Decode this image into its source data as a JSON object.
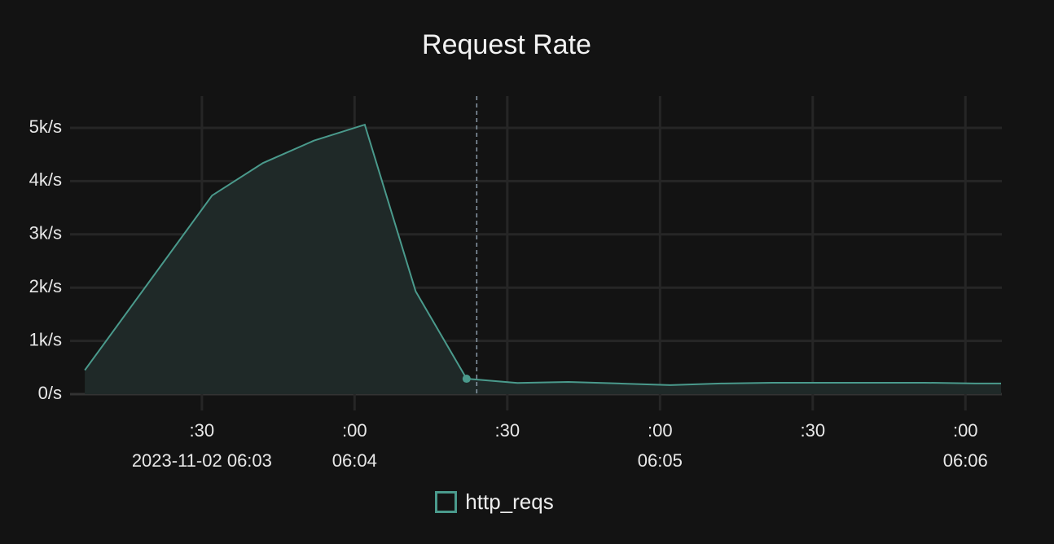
{
  "chart_data": {
    "type": "area",
    "title": "Request Rate",
    "xlabel": "",
    "ylabel": "",
    "x_type": "time",
    "xlim": [
      "2023-11-02 06:03:07.3",
      "2023-11-02 06:06:07"
    ],
    "ylim": [
      0,
      5000
    ],
    "y_ticks": [
      {
        "value": 0,
        "label": "0/s"
      },
      {
        "value": 1000,
        "label": "1k/s"
      },
      {
        "value": 2000,
        "label": "2k/s"
      },
      {
        "value": 3000,
        "label": "3k/s"
      },
      {
        "value": 4000,
        "label": "4k/s"
      },
      {
        "value": 5000,
        "label": "5k/s"
      }
    ],
    "x_ticks": [
      {
        "t": "2023-11-02 06:03:30",
        "label": ":30",
        "sublabel": "2023-11-02 06:03"
      },
      {
        "t": "2023-11-02 06:04:00",
        "label": ":00",
        "sublabel": "06:04"
      },
      {
        "t": "2023-11-02 06:04:30",
        "label": ":30",
        "sublabel": ""
      },
      {
        "t": "2023-11-02 06:05:00",
        "label": ":00",
        "sublabel": "06:05"
      },
      {
        "t": "2023-11-02 06:05:30",
        "label": ":30",
        "sublabel": ""
      },
      {
        "t": "2023-11-02 06:06:00",
        "label": ":00",
        "sublabel": "06:06"
      }
    ],
    "grid": true,
    "legend": "bottom-center",
    "cursor_time": "2023-11-02 06:04:24",
    "highlighted_point": "2023-11-02 06:04:22",
    "series": [
      {
        "name": "http_reqs",
        "color": "#4a9a8c",
        "fill": "#1f2928",
        "points": [
          {
            "t": "2023-11-02 06:03:07",
            "y": 450
          },
          {
            "t": "2023-11-02 06:03:32",
            "y": 3730
          },
          {
            "t": "2023-11-02 06:03:42",
            "y": 4340
          },
          {
            "t": "2023-11-02 06:03:52",
            "y": 4760
          },
          {
            "t": "2023-11-02 06:04:02",
            "y": 5060
          },
          {
            "t": "2023-11-02 06:04:12",
            "y": 1930
          },
          {
            "t": "2023-11-02 06:04:22",
            "y": 290
          },
          {
            "t": "2023-11-02 06:04:32",
            "y": 210
          },
          {
            "t": "2023-11-02 06:04:42",
            "y": 230
          },
          {
            "t": "2023-11-02 06:04:52",
            "y": 200
          },
          {
            "t": "2023-11-02 06:05:02",
            "y": 170
          },
          {
            "t": "2023-11-02 06:05:12",
            "y": 200
          },
          {
            "t": "2023-11-02 06:05:22",
            "y": 215
          },
          {
            "t": "2023-11-02 06:05:32",
            "y": 215
          },
          {
            "t": "2023-11-02 06:05:42",
            "y": 215
          },
          {
            "t": "2023-11-02 06:05:52",
            "y": 215
          },
          {
            "t": "2023-11-02 06:06:02",
            "y": 200
          },
          {
            "t": "2023-11-02 06:06:07",
            "y": 200
          }
        ]
      }
    ]
  }
}
